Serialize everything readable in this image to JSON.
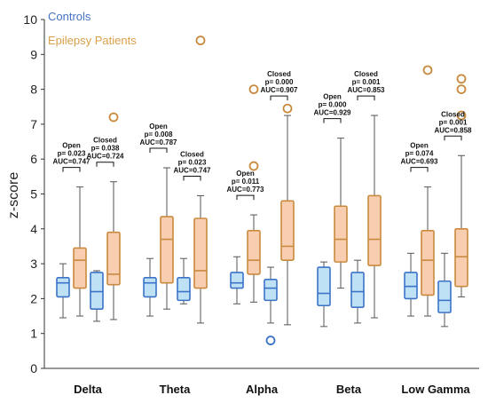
{
  "chart_data": {
    "type": "box",
    "ylabel": "z-score",
    "ylim": [
      0,
      10
    ],
    "yticks": [
      "0",
      "1",
      "2",
      "3",
      "4",
      "5",
      "6",
      "7",
      "8",
      "9",
      "10"
    ],
    "categories": [
      "Delta",
      "Theta",
      "Alpha",
      "Beta",
      "Low Gamma"
    ],
    "colors": {
      "controls_box": "#bfe1f5",
      "controls_edge": "#3c73c8",
      "patients_box": "#f9ceb0",
      "patients_edge": "#c98a3e",
      "whisker": "#555555",
      "outlier": "#c98a3e",
      "outlier_blue": "#3c73c8"
    },
    "legend": [
      {
        "name": "Controls",
        "color": "#4472c4"
      },
      {
        "name": "Epilepsy Patients",
        "color": "#d9a04a"
      }
    ],
    "boxes": [
      {
        "category": "Delta",
        "group": "Controls",
        "condition": "Open",
        "whislo": 1.45,
        "q1": 2.05,
        "med": 2.45,
        "q3": 2.6,
        "whishi": 3.0,
        "fliers": []
      },
      {
        "category": "Delta",
        "group": "Epilepsy Patients",
        "condition": "Open",
        "whislo": 1.5,
        "q1": 2.3,
        "med": 3.1,
        "q3": 3.45,
        "whishi": 5.2,
        "fliers": []
      },
      {
        "category": "Delta",
        "group": "Controls",
        "condition": "Closed",
        "whislo": 1.35,
        "q1": 1.7,
        "med": 2.2,
        "q3": 2.75,
        "whishi": 2.8,
        "fliers": []
      },
      {
        "category": "Delta",
        "group": "Epilepsy Patients",
        "condition": "Closed",
        "whislo": 1.4,
        "q1": 2.4,
        "med": 2.7,
        "q3": 3.9,
        "whishi": 5.35,
        "fliers": [
          7.2
        ]
      },
      {
        "category": "Theta",
        "group": "Controls",
        "condition": "Open",
        "whislo": 1.5,
        "q1": 2.05,
        "med": 2.45,
        "q3": 2.6,
        "whishi": 3.15,
        "fliers": []
      },
      {
        "category": "Theta",
        "group": "Epilepsy Patients",
        "condition": "Open",
        "whislo": 1.7,
        "q1": 2.45,
        "med": 3.7,
        "q3": 4.35,
        "whishi": 5.75,
        "fliers": []
      },
      {
        "category": "Theta",
        "group": "Controls",
        "condition": "Closed",
        "whislo": 1.85,
        "q1": 1.95,
        "med": 2.2,
        "q3": 2.6,
        "whishi": 3.15,
        "fliers": []
      },
      {
        "category": "Theta",
        "group": "Epilepsy Patients",
        "condition": "Closed",
        "whislo": 1.3,
        "q1": 2.3,
        "med": 2.8,
        "q3": 4.3,
        "whishi": 4.95,
        "fliers": [
          9.4
        ]
      },
      {
        "category": "Alpha",
        "group": "Controls",
        "condition": "Open",
        "whislo": 1.85,
        "q1": 2.3,
        "med": 2.45,
        "q3": 2.75,
        "whishi": 3.2,
        "fliers": []
      },
      {
        "category": "Alpha",
        "group": "Epilepsy Patients",
        "condition": "Open",
        "whislo": 1.9,
        "q1": 2.7,
        "med": 3.1,
        "q3": 3.95,
        "whishi": 4.4,
        "fliers": [
          5.8,
          8.0
        ]
      },
      {
        "category": "Alpha",
        "group": "Controls",
        "condition": "Closed",
        "whislo": 1.3,
        "q1": 1.95,
        "med": 2.3,
        "q3": 2.55,
        "whishi": 2.9,
        "fliers": [
          0.8
        ]
      },
      {
        "category": "Alpha",
        "group": "Epilepsy Patients",
        "condition": "Closed",
        "whislo": 1.25,
        "q1": 3.1,
        "med": 3.5,
        "q3": 4.8,
        "whishi": 7.25,
        "fliers": [
          7.45
        ]
      },
      {
        "category": "Beta",
        "group": "Controls",
        "condition": "Open",
        "whislo": 1.2,
        "q1": 1.8,
        "med": 2.15,
        "q3": 2.9,
        "whishi": 3.05,
        "fliers": []
      },
      {
        "category": "Beta",
        "group": "Epilepsy Patients",
        "condition": "Open",
        "whislo": 2.3,
        "q1": 3.05,
        "med": 3.7,
        "q3": 4.65,
        "whishi": 6.6,
        "fliers": []
      },
      {
        "category": "Beta",
        "group": "Controls",
        "condition": "Closed",
        "whislo": 1.3,
        "q1": 1.75,
        "med": 2.2,
        "q3": 2.75,
        "whishi": 3.1,
        "fliers": []
      },
      {
        "category": "Beta",
        "group": "Epilepsy Patients",
        "condition": "Closed",
        "whislo": 1.45,
        "q1": 2.95,
        "med": 3.7,
        "q3": 4.95,
        "whishi": 7.25,
        "fliers": []
      },
      {
        "category": "Low Gamma",
        "group": "Controls",
        "condition": "Open",
        "whislo": 1.5,
        "q1": 2.0,
        "med": 2.35,
        "q3": 2.75,
        "whishi": 3.3,
        "fliers": []
      },
      {
        "category": "Low Gamma",
        "group": "Epilepsy Patients",
        "condition": "Open",
        "whislo": 1.5,
        "q1": 2.1,
        "med": 3.1,
        "q3": 3.95,
        "whishi": 5.2,
        "fliers": [
          8.55
        ]
      },
      {
        "category": "Low Gamma",
        "group": "Controls",
        "condition": "Closed",
        "whislo": 1.2,
        "q1": 1.6,
        "med": 1.95,
        "q3": 2.5,
        "whishi": 3.3,
        "fliers": []
      },
      {
        "category": "Low Gamma",
        "group": "Epilepsy Patients",
        "condition": "Closed",
        "whislo": 2.05,
        "q1": 2.35,
        "med": 3.2,
        "q3": 4.0,
        "whishi": 6.1,
        "fliers": [
          7.25,
          8.0,
          8.3
        ]
      }
    ],
    "annotations": [
      {
        "category": "Delta",
        "condition": "Open",
        "lines": [
          "Open",
          "p= 0.023",
          "AUC=0.747"
        ]
      },
      {
        "category": "Delta",
        "condition": "Closed",
        "lines": [
          "Closed",
          "p= 0.038",
          "AUC=0.724"
        ]
      },
      {
        "category": "Theta",
        "condition": "Open",
        "lines": [
          "Open",
          "p= 0.008",
          "AUC=0.787"
        ]
      },
      {
        "category": "Theta",
        "condition": "Closed",
        "lines": [
          "Closed",
          "p= 0.023",
          "AUC=0.747"
        ]
      },
      {
        "category": "Alpha",
        "condition": "Open",
        "lines": [
          "Open",
          "p= 0.011",
          "AUC=0.773"
        ]
      },
      {
        "category": "Alpha",
        "condition": "Closed",
        "lines": [
          "Closed",
          "p= 0.000",
          "AUC=0.907"
        ]
      },
      {
        "category": "Beta",
        "condition": "Open",
        "lines": [
          "Open",
          "p= 0.000",
          "AUC=0.929"
        ]
      },
      {
        "category": "Beta",
        "condition": "Closed",
        "lines": [
          "Closed",
          "p= 0.001",
          "AUC=0.853"
        ]
      },
      {
        "category": "Low Gamma",
        "condition": "Open",
        "lines": [
          "Open",
          "p= 0.074",
          "AUC=0.693"
        ]
      },
      {
        "category": "Low Gamma",
        "condition": "Closed",
        "lines": [
          "Closed",
          "p= 0.001",
          "AUC=0.858"
        ]
      }
    ]
  }
}
